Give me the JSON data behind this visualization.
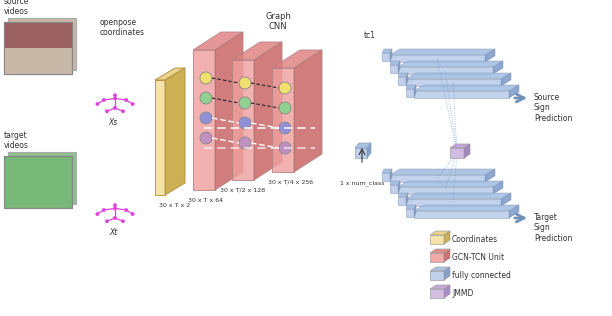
{
  "background_color": "#ffffff",
  "colors": {
    "gcn_face": "#f0a0a0",
    "gcn_top": "#e08080",
    "gcn_side": "#c86060",
    "coord_face": "#f5e0a0",
    "coord_top": "#e8d080",
    "coord_side": "#c8a840",
    "fc_face": "#b8cce8",
    "fc_top": "#a0bce0",
    "fc_side": "#7898c8",
    "jmmd_face": "#d0b8e0",
    "jmmd_top": "#c0a0d8",
    "jmmd_side": "#a080c0",
    "node_yellow": "#f0e070",
    "node_green": "#90d090",
    "node_blue": "#9090d8",
    "node_purple": "#c090c0",
    "text_color": "#333333",
    "skeleton_color": "#dd44dd",
    "prediction_arrow": "#7090b8"
  },
  "labels": {
    "source_videos": "source\nvideos",
    "target_videos": "target\nvideos",
    "openpose": "openpose\ncoordinates",
    "graph_cnn": "Graph\nCNN",
    "tc1": "tc1",
    "dim1": "30 x T x 2",
    "dim2": "30 x T x 64",
    "dim3": "30 x T/2 x 128",
    "dim4": "30 x T/4 x 256",
    "dim5": "1 x num_class",
    "xs": "Xs",
    "xt": "Xt",
    "source_pred": "Source\nSign\nPrediction",
    "target_pred": "Target\nSign\nPrediction",
    "legend_coord": "Coordinates",
    "legend_gcn": "GCN-TCN Unit",
    "legend_fc": "fully connected",
    "legend_jmmd": "JMMD"
  }
}
